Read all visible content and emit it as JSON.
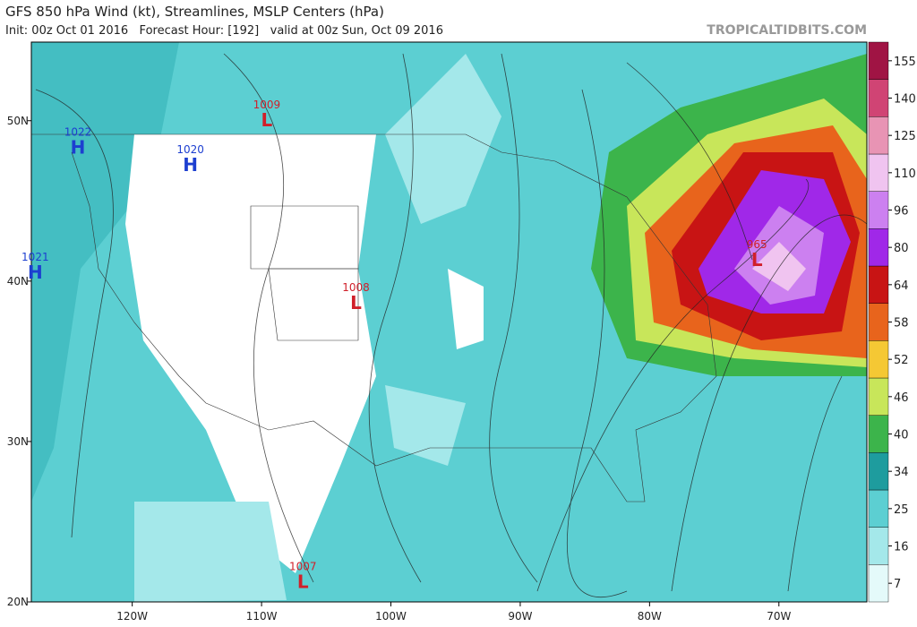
{
  "title": "GFS 850 hPa Wind (kt), Streamlines, MSLP Centers (hPa)",
  "subtitle": "Init: 00z Oct 01 2016   Forecast Hour: [192]   valid at 00z Sun, Oct 09 2016",
  "watermark": "TROPICALTIDBITS.COM",
  "map": {
    "xlim": [
      -127.8,
      -63.2
    ],
    "ylim": [
      20,
      54.9
    ],
    "xticks": [
      {
        "value": -120,
        "label": "120W"
      },
      {
        "value": -110,
        "label": "110W"
      },
      {
        "value": -100,
        "label": "100W"
      },
      {
        "value": -90,
        "label": "90W"
      },
      {
        "value": -80,
        "label": "80W"
      },
      {
        "value": -70,
        "label": "70W"
      }
    ],
    "yticks": [
      {
        "value": 20,
        "label": "20N"
      },
      {
        "value": 30,
        "label": "30N"
      },
      {
        "value": 40,
        "label": "40N"
      },
      {
        "value": 50,
        "label": "50N"
      }
    ],
    "centers": [
      {
        "label": "H",
        "value": 1022,
        "lon": -124.2,
        "lat": 48.4,
        "color": "#1d3fd0"
      },
      {
        "label": "H",
        "value": 1020,
        "lon": -115.5,
        "lat": 47.3,
        "color": "#1d3fd0"
      },
      {
        "label": "H",
        "value": 1021,
        "lon": -127.5,
        "lat": 40.6,
        "color": "#1d3fd0"
      },
      {
        "label": "L",
        "value": 1009,
        "lon": -109.6,
        "lat": 50.1,
        "color": "#d0202a"
      },
      {
        "label": "L",
        "value": 1008,
        "lon": -102.7,
        "lat": 38.7,
        "color": "#d0202a"
      },
      {
        "label": "L",
        "value": 1007,
        "lon": -106.8,
        "lat": 21.3,
        "color": "#d0202a"
      },
      {
        "label": "L",
        "value": 965,
        "lon": -71.7,
        "lat": 41.4,
        "color": "#d0202a"
      }
    ]
  },
  "colorbar": {
    "ticks": [
      7,
      16,
      25,
      34,
      40,
      46,
      52,
      58,
      64,
      80,
      96,
      110,
      125,
      140,
      155
    ],
    "colors": [
      "#e4fafa",
      "#a4e8ea",
      "#5ccfd2",
      "#1e9c9e",
      "#3cb44b",
      "#c8e65a",
      "#f5c834",
      "#e8641c",
      "#c81414",
      "#a028e8",
      "#cc80f0",
      "#f0c4f0",
      "#e894b4",
      "#d04474",
      "#a01444"
    ]
  }
}
